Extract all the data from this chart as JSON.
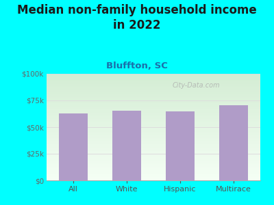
{
  "title": "Median non-family household income\nin 2022",
  "subtitle": "Bluffton, SC",
  "categories": [
    "All",
    "White",
    "Hispanic",
    "Multirace"
  ],
  "values": [
    63000,
    65500,
    65000,
    70500
  ],
  "bar_color": "#b09cc8",
  "background_outer": "#00ffff",
  "background_inner_gradient_top": "#d4edd4",
  "background_inner_gradient_bottom": "#f5fff5",
  "title_fontsize": 12,
  "subtitle_fontsize": 9.5,
  "title_color": "#1a1a1a",
  "subtitle_color": "#1a6faa",
  "tick_label_color": "#666666",
  "x_label_color": "#555555",
  "ylim": [
    0,
    100000
  ],
  "yticks": [
    0,
    25000,
    50000,
    75000,
    100000
  ],
  "watermark": "City-Data.com",
  "grid_color": "#dddddd"
}
